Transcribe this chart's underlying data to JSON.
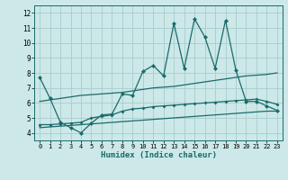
{
  "xlabel": "Humidex (Indice chaleur)",
  "bg_color": "#cce8e8",
  "grid_color": "#aacccc",
  "line_color": "#1a6b6b",
  "xlim": [
    -0.5,
    23.5
  ],
  "ylim": [
    3.5,
    12.5
  ],
  "xticks": [
    0,
    1,
    2,
    3,
    4,
    5,
    6,
    7,
    8,
    9,
    10,
    11,
    12,
    13,
    14,
    15,
    16,
    17,
    18,
    19,
    20,
    21,
    22,
    23
  ],
  "yticks": [
    4,
    5,
    6,
    7,
    8,
    9,
    10,
    11,
    12
  ],
  "line1_x": [
    0,
    1,
    2,
    3,
    4,
    5,
    6,
    7,
    8,
    9,
    10,
    11,
    12,
    13,
    14,
    15,
    16,
    17,
    18,
    19,
    20,
    21,
    22,
    23
  ],
  "line1_y": [
    7.7,
    6.3,
    4.7,
    4.35,
    4.0,
    4.65,
    5.2,
    5.25,
    6.6,
    6.5,
    8.1,
    8.5,
    7.8,
    11.3,
    8.3,
    11.6,
    10.4,
    8.3,
    11.5,
    8.2,
    6.1,
    6.1,
    5.8,
    5.5
  ],
  "line2_x": [
    0,
    1,
    2,
    3,
    4,
    5,
    6,
    7,
    8,
    9,
    10,
    11,
    12,
    13,
    14,
    15,
    16,
    17,
    18,
    19,
    20,
    21,
    22,
    23
  ],
  "line2_y": [
    6.1,
    6.2,
    6.3,
    6.4,
    6.5,
    6.55,
    6.6,
    6.65,
    6.7,
    6.8,
    6.9,
    7.0,
    7.05,
    7.1,
    7.2,
    7.3,
    7.4,
    7.5,
    7.6,
    7.7,
    7.8,
    7.85,
    7.9,
    8.0
  ],
  "line3_x": [
    0,
    1,
    2,
    3,
    4,
    5,
    6,
    7,
    8,
    9,
    10,
    11,
    12,
    13,
    14,
    15,
    16,
    17,
    18,
    19,
    20,
    21,
    22,
    23
  ],
  "line3_y": [
    4.55,
    4.55,
    4.6,
    4.65,
    4.7,
    5.0,
    5.1,
    5.2,
    5.45,
    5.6,
    5.65,
    5.75,
    5.8,
    5.85,
    5.9,
    5.95,
    6.0,
    6.05,
    6.1,
    6.15,
    6.2,
    6.25,
    6.1,
    5.9
  ],
  "line4_x": [
    0,
    1,
    2,
    3,
    4,
    5,
    6,
    7,
    8,
    9,
    10,
    11,
    12,
    13,
    14,
    15,
    16,
    17,
    18,
    19,
    20,
    21,
    22,
    23
  ],
  "line4_y": [
    4.35,
    4.4,
    4.45,
    4.5,
    4.55,
    4.6,
    4.65,
    4.7,
    4.75,
    4.8,
    4.85,
    4.9,
    4.95,
    5.0,
    5.05,
    5.1,
    5.15,
    5.2,
    5.25,
    5.3,
    5.35,
    5.4,
    5.45,
    5.45
  ]
}
